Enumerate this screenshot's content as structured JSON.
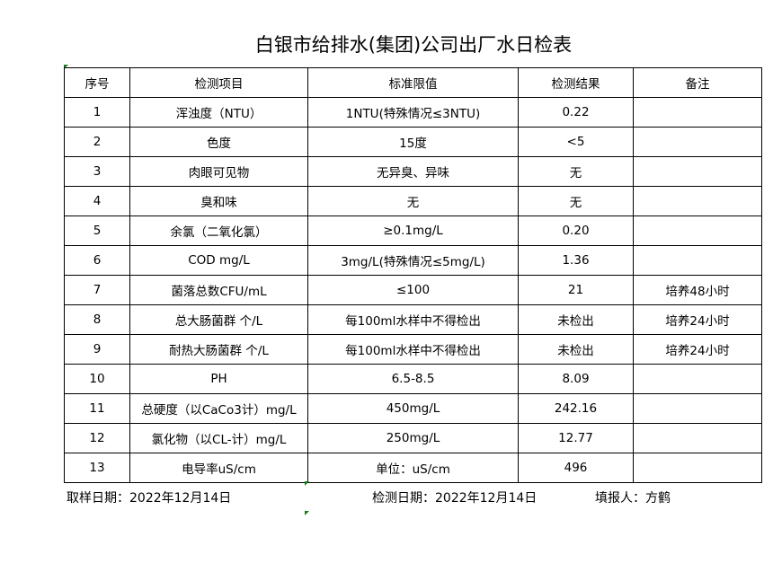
{
  "title": "白银市给排水(集团)公司出厂水日检表",
  "headers": [
    "序号",
    "检测项目",
    "标准限值",
    "检测结果",
    "备注"
  ],
  "rows": [
    [
      "1",
      "浑浊度（NTU）",
      "1NTU(特殊情况≤3NTU)",
      "0.22",
      ""
    ],
    [
      "2",
      "色度",
      "15度",
      "<5",
      ""
    ],
    [
      "3",
      "肉眼可见物",
      "无异臭、异味",
      "无",
      ""
    ],
    [
      "4",
      "臭和味",
      "无",
      "无",
      ""
    ],
    [
      "5",
      "余氯（二氧化氯）",
      "≥0.1mg/L",
      "0.20",
      ""
    ],
    [
      "6",
      "COD          mg/L",
      "3mg/L(特殊情况≤5mg/L)",
      "1.36",
      ""
    ],
    [
      "7",
      "菌落总数CFU/mL",
      "≤100",
      "21",
      "培养48小时"
    ],
    [
      "8",
      "总大肠菌群 个/L",
      "每100ml水样中不得检出",
      "未检出",
      "培养24小时"
    ],
    [
      "9",
      "耐热大肠菌群 个/L",
      "每100ml水样中不得检出",
      "未检出",
      "培养24小时"
    ],
    [
      "10",
      "PH",
      "6.5-8.5",
      "8.09",
      ""
    ],
    [
      "11",
      "总硬度（以CaCo3计）mg/L",
      "450mg/L",
      "242.16",
      ""
    ],
    [
      "12",
      "氯化物（以CL-计）mg/L",
      "250mg/L",
      "12.77",
      ""
    ],
    [
      "13",
      "电导率uS/cm",
      "单位：uS/cm",
      "496",
      ""
    ]
  ],
  "footer": {
    "sample_date": "取样日期：2022年12月14日",
    "test_date": "检测日期：2022年12月14日",
    "reporter": "填报人：方鹤"
  }
}
